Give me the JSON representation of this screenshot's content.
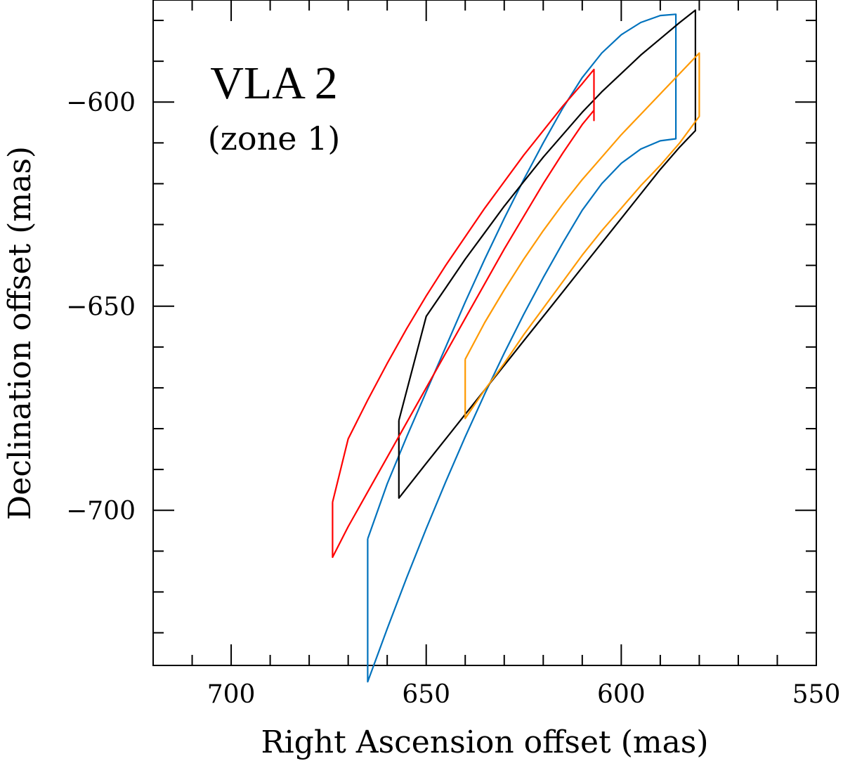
{
  "chart_data": {
    "type": "line",
    "title": "",
    "xlabel": "Right Ascension offset (mas)",
    "ylabel": "Declination offset (mas)",
    "xlim": [
      720,
      550
    ],
    "ylim": [
      -738,
      -575
    ],
    "x_ticks": [
      700,
      650,
      600,
      550
    ],
    "x_tick_labels": [
      "700",
      "650",
      "600",
      "550"
    ],
    "y_ticks": [
      -600,
      -650,
      -700
    ],
    "y_tick_labels": [
      "−600",
      "−650",
      "−700"
    ],
    "x_minor_step": 10,
    "y_minor_step": 10,
    "grid": false,
    "annotations": [
      {
        "text": "VLA 2",
        "role": "name"
      },
      {
        "text": "(zone 1)",
        "role": "zone"
      }
    ],
    "series": [
      {
        "color": "#0072bd",
        "x": [
          665,
          665,
          660,
          655,
          650,
          645,
          640,
          635,
          630,
          625,
          620,
          615,
          610,
          605,
          600,
          595,
          590,
          586,
          586,
          586,
          590,
          595,
          600,
          605,
          610,
          615,
          620,
          625,
          630,
          635,
          640,
          645,
          650,
          655,
          660,
          665
        ],
        "y": [
          -707,
          -742,
          -729,
          -716.5,
          -704.5,
          -693,
          -682,
          -671.5,
          -661.5,
          -652,
          -643,
          -634.5,
          -626.5,
          -620,
          -615,
          -611.5,
          -609.5,
          -609,
          -578.5,
          -578.5,
          -578.8,
          -580.5,
          -583.5,
          -588,
          -594,
          -601.5,
          -610,
          -619,
          -628.5,
          -638.5,
          -649,
          -660,
          -671,
          -682,
          -693.5,
          -707
        ]
      },
      {
        "color": "#000000",
        "x": [
          657,
          657,
          650,
          645,
          640,
          635,
          630,
          625,
          620,
          615,
          610,
          605,
          600,
          595,
          590,
          585,
          581,
          581,
          581,
          585,
          590,
          595,
          600,
          605,
          610,
          615,
          620,
          625,
          630,
          635,
          640,
          645,
          650,
          657
        ],
        "y": [
          -678,
          -697,
          -688.5,
          -682.5,
          -676.5,
          -670.5,
          -664.5,
          -658.5,
          -652.5,
          -646.5,
          -640.5,
          -634.5,
          -628.5,
          -622.5,
          -616.5,
          -611,
          -607,
          -597.5,
          -577.5,
          -580.5,
          -584.5,
          -588.5,
          -593,
          -597.5,
          -602.5,
          -608,
          -613.5,
          -619.5,
          -625.5,
          -632,
          -638.5,
          -645.5,
          -652.5,
          -678
        ]
      },
      {
        "color": "#ff0000",
        "x": [
          674,
          674,
          670,
          665,
          660,
          655,
          650,
          645,
          640,
          635,
          630,
          625,
          620,
          615,
          610,
          607,
          607,
          607,
          610,
          615,
          620,
          625,
          630,
          635,
          640,
          645,
          650,
          655,
          660,
          665,
          670,
          674
        ],
        "y": [
          -698,
          -711.5,
          -704,
          -695.5,
          -687,
          -678.5,
          -670,
          -661.5,
          -653,
          -644.5,
          -636,
          -628,
          -620,
          -612.5,
          -605.5,
          -602,
          -604.5,
          -592,
          -595.5,
          -601,
          -607,
          -613,
          -619.5,
          -626,
          -633,
          -640,
          -647.5,
          -655.5,
          -664,
          -673,
          -682.5,
          -698
        ]
      },
      {
        "color": "#ff9900",
        "x": [
          640,
          640,
          635,
          630,
          625,
          620,
          615,
          610,
          605,
          600,
          595,
          590,
          585,
          580,
          580,
          580,
          585,
          590,
          595,
          600,
          605,
          610,
          615,
          620,
          625,
          630,
          635,
          640
        ],
        "y": [
          -663,
          -677.5,
          -670.5,
          -664,
          -657,
          -650.5,
          -644,
          -637.5,
          -631.5,
          -626,
          -620.5,
          -615.5,
          -610,
          -603.5,
          -603.5,
          -588,
          -593,
          -598,
          -603,
          -608,
          -613.5,
          -619,
          -625,
          -631.5,
          -638.5,
          -646,
          -654,
          -663
        ]
      }
    ]
  }
}
